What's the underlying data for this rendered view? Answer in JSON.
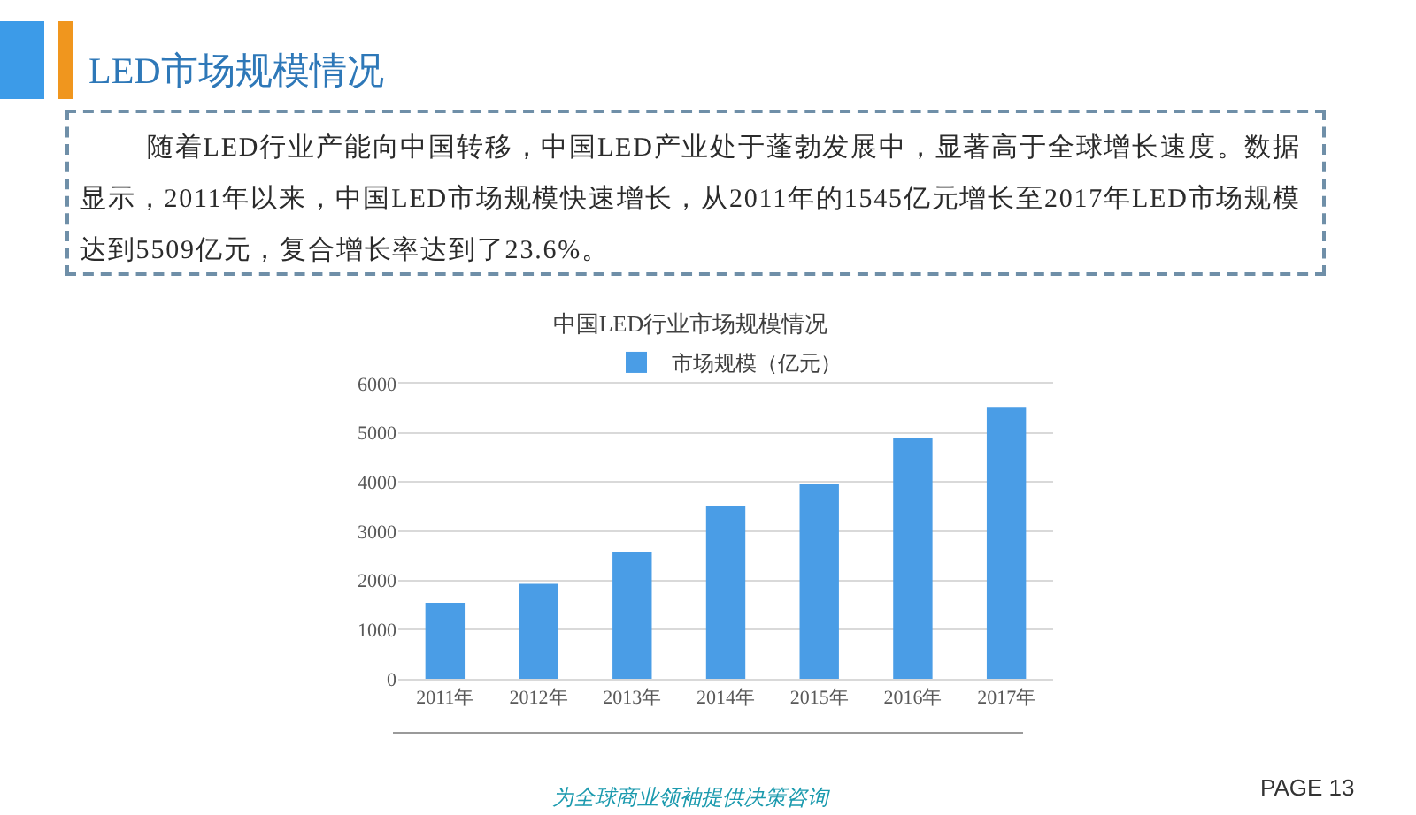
{
  "chart_data": {
    "type": "bar",
    "title": "中国LED行业市场规模情况",
    "categories": [
      "2011年",
      "2012年",
      "2013年",
      "2014年",
      "2015年",
      "2016年",
      "2017年"
    ],
    "series": [
      {
        "name": "市场规模（亿元）",
        "color": "#4a9de6",
        "values": [
          1545,
          1930,
          2580,
          3520,
          3970,
          4890,
          5509
        ]
      }
    ],
    "ylim": [
      0,
      6000
    ],
    "yticks": [
      0,
      1000,
      2000,
      3000,
      4000,
      5000,
      6000
    ],
    "grid": "y",
    "legend": "top",
    "annotations": [
      "LED市场规模情况",
      "随着LED行业产能向中国转移，中国LED产业处于蓬勃发展中，显著高于全球增长速度。数据显示，2011年以来，中国LED市场规模快速增长，从2011年的1545亿元增长至2017年LED市场规模达到5509亿元，复合增长率达到了23.6%。",
      "为全球商业领袖提供决策咨询",
      "PAGE 13"
    ]
  }
}
